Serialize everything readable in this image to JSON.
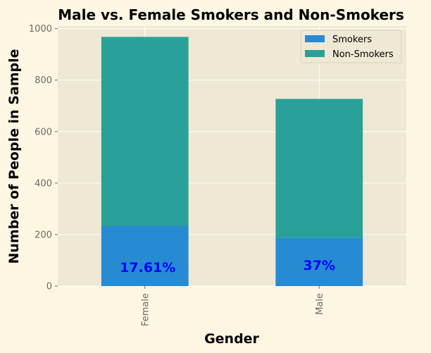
{
  "chart_data": {
    "type": "bar",
    "stacked": true,
    "title": "Male vs. Female Smokers and Non-Smokers",
    "xlabel": "Gender",
    "ylabel": "Number of People in Sample",
    "categories": [
      "Female",
      "Male"
    ],
    "series": [
      {
        "name": "Smokers",
        "values": [
          234,
          188
        ],
        "color": "#268bd2"
      },
      {
        "name": "Non-Smokers",
        "values": [
          734,
          539
        ],
        "color": "#2aa198"
      }
    ],
    "annotations": [
      "17.61%",
      "37%"
    ],
    "ylim": [
      0,
      1010
    ],
    "yticks": [
      0,
      200,
      400,
      600,
      800,
      1000
    ],
    "grid": true,
    "legend_position": "top-right",
    "colors": {
      "background": "#fdf6e3",
      "plot_background": "#eee8d5",
      "grid": "#ffffff",
      "annotation": "#0000ff"
    }
  }
}
